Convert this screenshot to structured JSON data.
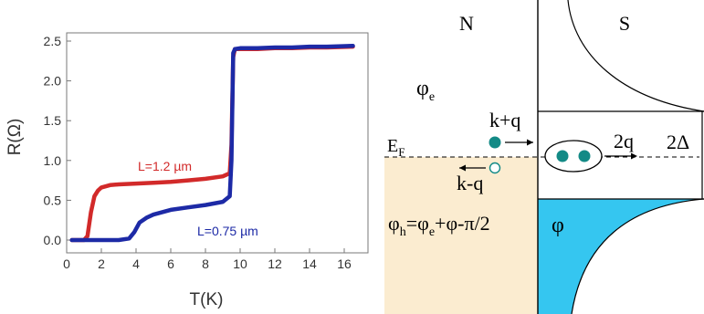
{
  "left_plot": {
    "ylabel": "R(Ω)",
    "xlabel": "T(K)",
    "x_ticks": [
      "0",
      "2",
      "4",
      "6",
      "8",
      "10",
      "12",
      "14",
      "16"
    ],
    "y_ticks": [
      "0.0",
      "0.5",
      "1.0",
      "1.5",
      "2.0",
      "2.5"
    ],
    "label_red": "L=1.2 µm",
    "label_blue": "L=0.75 µm",
    "color_red": "#d22a2a",
    "color_blue": "#1d2aa6"
  },
  "chart_data": {
    "type": "line",
    "xlabel": "T(K)",
    "ylabel": "R(Ω)",
    "xlim": [
      0,
      17
    ],
    "ylim": [
      -0.1,
      2.6
    ],
    "grid": false,
    "series": [
      {
        "name": "L=1.2 µm",
        "color": "#d22a2a",
        "x": [
          0.3,
          1.0,
          1.2,
          1.4,
          1.6,
          1.8,
          2.0,
          2.5,
          3.0,
          4.0,
          5.0,
          6.0,
          7.0,
          8.0,
          9.0,
          9.4,
          9.5,
          9.6,
          9.7,
          10,
          11,
          12,
          13,
          14,
          15,
          16.5
        ],
        "y": [
          0.0,
          0.0,
          0.05,
          0.35,
          0.55,
          0.62,
          0.66,
          0.69,
          0.7,
          0.71,
          0.72,
          0.73,
          0.75,
          0.77,
          0.8,
          0.84,
          1.2,
          2.3,
          2.4,
          2.4,
          2.4,
          2.41,
          2.41,
          2.42,
          2.42,
          2.43
        ]
      },
      {
        "name": "L=0.75 µm",
        "color": "#1d2aa6",
        "x": [
          0.3,
          1,
          2,
          3,
          3.6,
          3.9,
          4.2,
          4.6,
          5.0,
          6.0,
          7.0,
          8.0,
          9.0,
          9.4,
          9.5,
          9.6,
          9.7,
          10,
          11,
          12,
          13,
          14,
          15,
          16.5
        ],
        "y": [
          0.0,
          0.0,
          0.0,
          0.0,
          0.02,
          0.1,
          0.22,
          0.28,
          0.32,
          0.38,
          0.41,
          0.44,
          0.48,
          0.55,
          1.0,
          2.35,
          2.4,
          2.41,
          2.41,
          2.42,
          2.42,
          2.43,
          2.43,
          2.44
        ]
      }
    ]
  },
  "diagram": {
    "N": "N",
    "S": "S",
    "phi_e": "φ",
    "phi_e_sub": "e",
    "kq_plus": "k+q",
    "kq_minus": "k-q",
    "EF": "E",
    "EF_sub": "F",
    "two_q": "2q",
    "two_delta": "2Δ",
    "phi": "φ",
    "phi_h_eq_prefix": "φ",
    "phi_h_eq_sub": "h",
    "phi_h_eq_mid": "=φ",
    "phi_h_eq_sub2": "e",
    "phi_h_eq_suffix": "+φ-π/2",
    "color_normal": "#fbecd0",
    "color_super": "#35c6f0",
    "color_dot": "#138a86"
  }
}
